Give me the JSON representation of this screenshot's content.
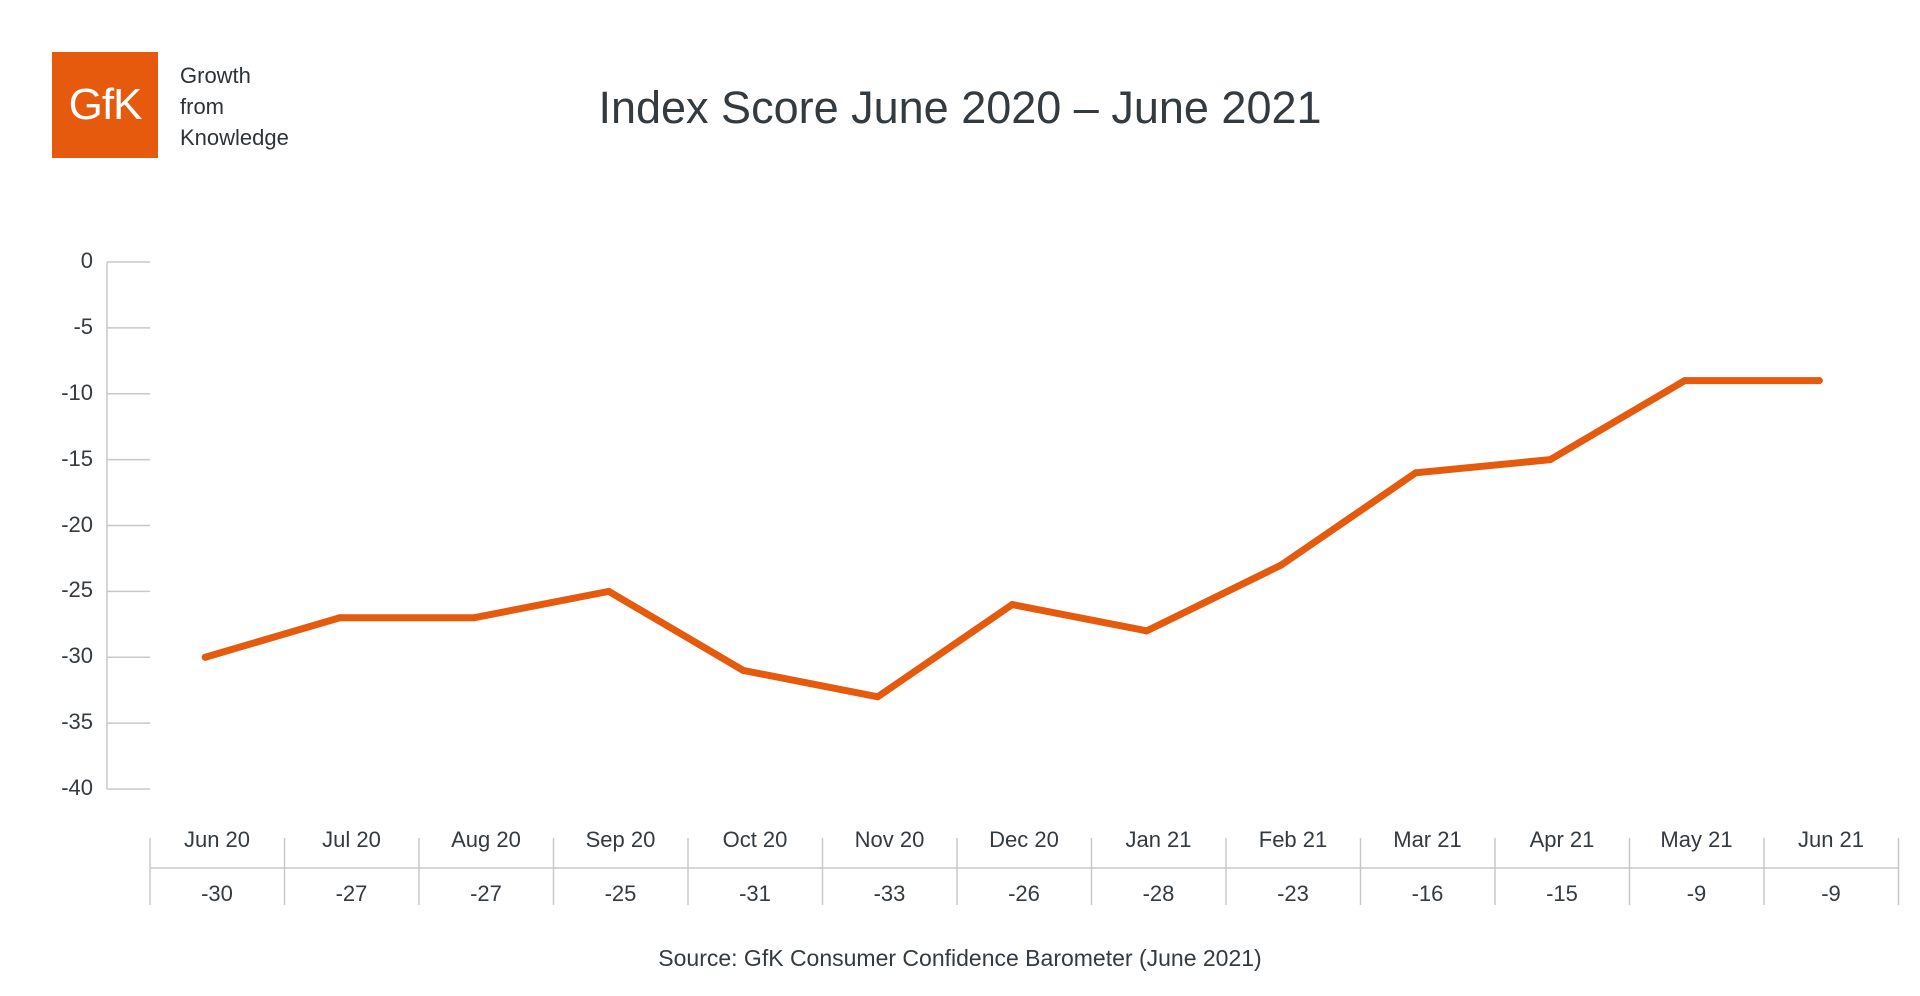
{
  "logo": {
    "text": "GfK",
    "tagline": [
      "Growth",
      "from",
      "Knowledge"
    ]
  },
  "source": "Source: GfK Consumer Confidence Barometer (June 2021)",
  "colors": {
    "line": "#e55a0c",
    "axis": "#c8c8c8",
    "text": "#333a40",
    "brand": "#e55a0c"
  },
  "chart_data": {
    "type": "line",
    "title": "Index Score June 2020 – June 2021",
    "xlabel": "",
    "ylabel": "",
    "categories": [
      "Jun 20",
      "Jul 20",
      "Aug 20",
      "Sep 20",
      "Oct 20",
      "Nov 20",
      "Dec 20",
      "Jan 21",
      "Feb 21",
      "Mar 21",
      "Apr 21",
      "May 21",
      "Jun 21"
    ],
    "series": [
      {
        "values": [
          -30,
          -27,
          -27,
          -25,
          -31,
          -33,
          -26,
          -28,
          -23,
          -16,
          -15,
          -9,
          -9
        ]
      }
    ],
    "ylim": [
      -40,
      0
    ],
    "yticks": [
      0,
      -5,
      -10,
      -15,
      -20,
      -25,
      -30,
      -35,
      -40
    ],
    "data_table": true,
    "grid": false,
    "legend": "none"
  }
}
